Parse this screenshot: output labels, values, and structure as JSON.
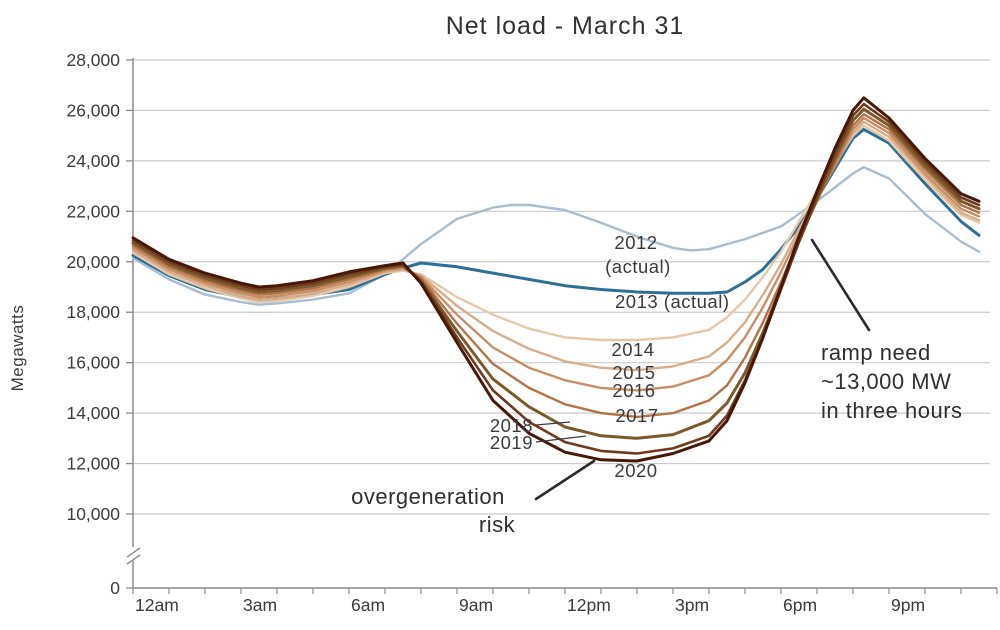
{
  "chart_data": {
    "type": "line",
    "title": "Net load - March 31",
    "ylabel": "Megawatts",
    "x_axis": {
      "unit": "hour of day",
      "tick_labels": [
        {
          "label": "12am",
          "hour": 0
        },
        {
          "label": "3am",
          "hour": 3
        },
        {
          "label": "6am",
          "hour": 6
        },
        {
          "label": "9am",
          "hour": 9
        },
        {
          "label": "12pm",
          "hour": 12
        },
        {
          "label": "3pm",
          "hour": 15
        },
        {
          "label": "6pm",
          "hour": 18
        },
        {
          "label": "9pm",
          "hour": 21
        }
      ],
      "minor_tick_every_hours": 1,
      "range_hours": [
        0,
        24
      ]
    },
    "y_axis": {
      "unit": "MW",
      "tick_labels": [
        "28,000",
        "26,000",
        "24,000",
        "22,000",
        "20,000",
        "18,000",
        "16,000",
        "14,000",
        "12,000",
        "10,000",
        "0"
      ],
      "axis_break_between": [
        0,
        10000
      ],
      "grid": true
    },
    "series": [
      {
        "id": "2012",
        "label": "2012",
        "sublabel": "(actual)",
        "color": "#a9bdd1",
        "points": [
          [
            0,
            20150
          ],
          [
            1,
            19300
          ],
          [
            2,
            18700
          ],
          [
            3,
            18400
          ],
          [
            3.5,
            18300
          ],
          [
            4,
            18350
          ],
          [
            5,
            18500
          ],
          [
            6,
            18750
          ],
          [
            7,
            19500
          ],
          [
            8,
            20700
          ],
          [
            9,
            21700
          ],
          [
            10,
            22150
          ],
          [
            10.5,
            22250
          ],
          [
            11,
            22250
          ],
          [
            12,
            22050
          ],
          [
            13,
            21550
          ],
          [
            14,
            21000
          ],
          [
            15,
            20550
          ],
          [
            15.5,
            20450
          ],
          [
            16,
            20500
          ],
          [
            17,
            20900
          ],
          [
            18,
            21400
          ],
          [
            19,
            22400
          ],
          [
            20,
            23500
          ],
          [
            20.3,
            23750
          ],
          [
            21,
            23300
          ],
          [
            22,
            21900
          ],
          [
            23,
            20800
          ],
          [
            23.5,
            20400
          ]
        ]
      },
      {
        "id": "2013",
        "label": "2013 (actual)",
        "color": "#2e6f95",
        "points": [
          [
            0,
            20250
          ],
          [
            1,
            19450
          ],
          [
            2,
            18900
          ],
          [
            3,
            18600
          ],
          [
            3.5,
            18500
          ],
          [
            4,
            18550
          ],
          [
            5,
            18700
          ],
          [
            6,
            18900
          ],
          [
            7,
            19500
          ],
          [
            7.5,
            19750
          ],
          [
            8,
            19950
          ],
          [
            9,
            19800
          ],
          [
            10,
            19550
          ],
          [
            11,
            19300
          ],
          [
            12,
            19050
          ],
          [
            13,
            18900
          ],
          [
            14,
            18800
          ],
          [
            15,
            18750
          ],
          [
            16,
            18750
          ],
          [
            16.5,
            18800
          ],
          [
            17,
            19200
          ],
          [
            17.5,
            19700
          ],
          [
            18,
            20500
          ],
          [
            18.5,
            21400
          ],
          [
            19,
            22500
          ],
          [
            19.5,
            23700
          ],
          [
            20,
            24900
          ],
          [
            20.3,
            25250
          ],
          [
            21,
            24700
          ],
          [
            22,
            23100
          ],
          [
            23,
            21600
          ],
          [
            23.5,
            21050
          ]
        ]
      },
      {
        "id": "2014",
        "label": "2014",
        "color": "#e5c7a9",
        "points": [
          [
            0,
            20350
          ],
          [
            1,
            19500
          ],
          [
            2,
            18950
          ],
          [
            3,
            18550
          ],
          [
            3.5,
            18400
          ],
          [
            4,
            18450
          ],
          [
            5,
            18650
          ],
          [
            6,
            19000
          ],
          [
            7,
            19550
          ],
          [
            7.5,
            19650
          ],
          [
            8,
            19500
          ],
          [
            9,
            18600
          ],
          [
            10,
            17900
          ],
          [
            11,
            17350
          ],
          [
            12,
            17000
          ],
          [
            13,
            16900
          ],
          [
            14,
            16900
          ],
          [
            15,
            17000
          ],
          [
            16,
            17300
          ],
          [
            16.5,
            17800
          ],
          [
            17,
            18500
          ],
          [
            17.5,
            19400
          ],
          [
            18,
            20400
          ],
          [
            18.5,
            21600
          ],
          [
            19,
            22800
          ],
          [
            19.5,
            23900
          ],
          [
            20,
            25000
          ],
          [
            20.3,
            25400
          ],
          [
            21,
            24800
          ],
          [
            22,
            23250
          ],
          [
            23,
            21850
          ],
          [
            23.5,
            21550
          ]
        ]
      },
      {
        "id": "2015",
        "label": "2015",
        "color": "#d8ad8a",
        "points": [
          [
            0,
            20450
          ],
          [
            1,
            19600
          ],
          [
            2,
            19050
          ],
          [
            3,
            18650
          ],
          [
            3.5,
            18500
          ],
          [
            4,
            18550
          ],
          [
            5,
            18750
          ],
          [
            6,
            19100
          ],
          [
            7,
            19600
          ],
          [
            7.5,
            19700
          ],
          [
            8,
            19450
          ],
          [
            9,
            18250
          ],
          [
            10,
            17250
          ],
          [
            11,
            16550
          ],
          [
            12,
            16050
          ],
          [
            13,
            15800
          ],
          [
            14,
            15700
          ],
          [
            15,
            15850
          ],
          [
            16,
            16250
          ],
          [
            16.5,
            16800
          ],
          [
            17,
            17600
          ],
          [
            17.5,
            18700
          ],
          [
            18,
            19900
          ],
          [
            18.5,
            21300
          ],
          [
            19,
            22600
          ],
          [
            19.5,
            23800
          ],
          [
            20,
            25100
          ],
          [
            20.3,
            25550
          ],
          [
            21,
            24950
          ],
          [
            22,
            23400
          ],
          [
            23,
            21950
          ],
          [
            23.5,
            21650
          ]
        ]
      },
      {
        "id": "2016",
        "label": "2016",
        "color": "#c88f66",
        "points": [
          [
            0,
            20550
          ],
          [
            1,
            19700
          ],
          [
            2,
            19150
          ],
          [
            3,
            18750
          ],
          [
            3.5,
            18600
          ],
          [
            4,
            18650
          ],
          [
            5,
            18850
          ],
          [
            6,
            19200
          ],
          [
            7,
            19650
          ],
          [
            7.5,
            19750
          ],
          [
            8,
            19400
          ],
          [
            9,
            17900
          ],
          [
            10,
            16600
          ],
          [
            11,
            15800
          ],
          [
            12,
            15300
          ],
          [
            13,
            15000
          ],
          [
            14,
            14900
          ],
          [
            15,
            15050
          ],
          [
            16,
            15500
          ],
          [
            16.5,
            16100
          ],
          [
            17,
            17000
          ],
          [
            17.5,
            18200
          ],
          [
            18,
            19600
          ],
          [
            18.5,
            21100
          ],
          [
            19,
            22500
          ],
          [
            19.5,
            23800
          ],
          [
            20,
            25250
          ],
          [
            20.3,
            25700
          ],
          [
            21,
            25100
          ],
          [
            22,
            23500
          ],
          [
            23,
            22100
          ],
          [
            23.5,
            21800
          ]
        ]
      },
      {
        "id": "2017",
        "label": "2017",
        "color": "#b37348",
        "points": [
          [
            0,
            20650
          ],
          [
            1,
            19800
          ],
          [
            2,
            19250
          ],
          [
            3,
            18850
          ],
          [
            3.5,
            18700
          ],
          [
            4,
            18750
          ],
          [
            5,
            18950
          ],
          [
            6,
            19300
          ],
          [
            7,
            19700
          ],
          [
            7.5,
            19800
          ],
          [
            8,
            19350
          ],
          [
            9,
            17550
          ],
          [
            10,
            15950
          ],
          [
            11,
            15000
          ],
          [
            12,
            14350
          ],
          [
            13,
            14000
          ],
          [
            14,
            13850
          ],
          [
            15,
            14000
          ],
          [
            16,
            14500
          ],
          [
            16.5,
            15100
          ],
          [
            17,
            16200
          ],
          [
            17.5,
            17600
          ],
          [
            18,
            19200
          ],
          [
            18.5,
            20900
          ],
          [
            19,
            22400
          ],
          [
            19.5,
            23900
          ],
          [
            20,
            25400
          ],
          [
            20.3,
            25850
          ],
          [
            21,
            25250
          ],
          [
            22,
            23650
          ],
          [
            23,
            22250
          ],
          [
            23.5,
            21950
          ]
        ]
      },
      {
        "id": "2018",
        "label": "2018",
        "color": "#7b592b",
        "points": [
          [
            0,
            20750
          ],
          [
            1,
            19900
          ],
          [
            2,
            19350
          ],
          [
            3,
            18950
          ],
          [
            3.5,
            18800
          ],
          [
            4,
            18850
          ],
          [
            5,
            19050
          ],
          [
            6,
            19400
          ],
          [
            7,
            19750
          ],
          [
            7.5,
            19850
          ],
          [
            8,
            19250
          ],
          [
            9,
            17250
          ],
          [
            10,
            15350
          ],
          [
            11,
            14250
          ],
          [
            12,
            13450
          ],
          [
            13,
            13100
          ],
          [
            14,
            13000
          ],
          [
            15,
            13150
          ],
          [
            16,
            13700
          ],
          [
            16.5,
            14400
          ],
          [
            17,
            15600
          ],
          [
            17.5,
            17200
          ],
          [
            18,
            19000
          ],
          [
            18.5,
            20800
          ],
          [
            19,
            22500
          ],
          [
            19.5,
            24100
          ],
          [
            20,
            25600
          ],
          [
            20.3,
            26050
          ],
          [
            21,
            25400
          ],
          [
            22,
            23800
          ],
          [
            23,
            22400
          ],
          [
            23.5,
            22100
          ]
        ]
      },
      {
        "id": "2019",
        "label": "2019",
        "color": "#6f3a1d",
        "points": [
          [
            0,
            20850
          ],
          [
            1,
            20000
          ],
          [
            2,
            19450
          ],
          [
            3,
            19050
          ],
          [
            3.5,
            18900
          ],
          [
            4,
            18950
          ],
          [
            5,
            19150
          ],
          [
            6,
            19500
          ],
          [
            7,
            19800
          ],
          [
            7.5,
            19900
          ],
          [
            8,
            19200
          ],
          [
            9,
            17000
          ],
          [
            10,
            14900
          ],
          [
            11,
            13650
          ],
          [
            12,
            12850
          ],
          [
            13,
            12500
          ],
          [
            14,
            12400
          ],
          [
            15,
            12600
          ],
          [
            16,
            13100
          ],
          [
            16.5,
            13900
          ],
          [
            17,
            15300
          ],
          [
            17.5,
            17000
          ],
          [
            18,
            18900
          ],
          [
            18.5,
            20800
          ],
          [
            19,
            22600
          ],
          [
            19.5,
            24300
          ],
          [
            20,
            25800
          ],
          [
            20.3,
            26250
          ],
          [
            21,
            25550
          ],
          [
            22,
            23950
          ],
          [
            23,
            22550
          ],
          [
            23.5,
            22250
          ]
        ]
      },
      {
        "id": "2020",
        "label": "2020",
        "color": "#471708",
        "points": [
          [
            0,
            20950
          ],
          [
            1,
            20100
          ],
          [
            2,
            19550
          ],
          [
            3,
            19150
          ],
          [
            3.5,
            19000
          ],
          [
            4,
            19050
          ],
          [
            5,
            19250
          ],
          [
            6,
            19600
          ],
          [
            7,
            19850
          ],
          [
            7.5,
            19950
          ],
          [
            8,
            19150
          ],
          [
            9,
            16800
          ],
          [
            10,
            14500
          ],
          [
            11,
            13200
          ],
          [
            12,
            12450
          ],
          [
            13,
            12150
          ],
          [
            14,
            12100
          ],
          [
            15,
            12400
          ],
          [
            16,
            12900
          ],
          [
            16.5,
            13700
          ],
          [
            17,
            15200
          ],
          [
            17.5,
            17000
          ],
          [
            18,
            19000
          ],
          [
            18.5,
            21000
          ],
          [
            19,
            22800
          ],
          [
            19.5,
            24500
          ],
          [
            20,
            26000
          ],
          [
            20.3,
            26500
          ],
          [
            21,
            25700
          ],
          [
            22,
            24100
          ],
          [
            23,
            22700
          ],
          [
            23.5,
            22400
          ]
        ]
      }
    ],
    "annotations": {
      "overgeneration": {
        "line1": "overgeneration",
        "line2": "risk"
      },
      "ramp": {
        "line1": "ramp need",
        "line2": "~13,000 MW",
        "line3": "in three hours"
      }
    },
    "colors": {
      "grid": "#cbcbcb",
      "axis": "#8a8a8a",
      "text": "#3b3b3d",
      "annotation_line": "#2b2b2d"
    }
  }
}
